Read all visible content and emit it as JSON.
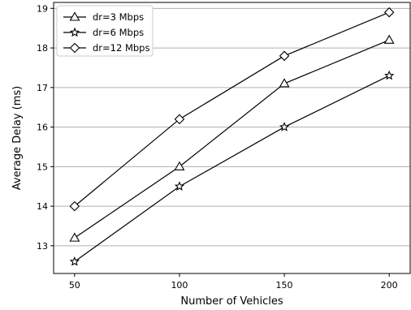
{
  "chart_data": {
    "type": "line",
    "title": "",
    "xlabel": "Number of Vehicles",
    "ylabel": "Average Delay (ms)",
    "x": [
      50,
      100,
      150,
      200
    ],
    "x_ticks": [
      "50",
      "100",
      "150",
      "200"
    ],
    "ylim": [
      12.3,
      19.15
    ],
    "y_ticks": [
      "13",
      "14",
      "15",
      "16",
      "17",
      "18",
      "19"
    ],
    "grid": "horizontal",
    "legend_position": "top-left",
    "series": [
      {
        "name": "dr=3 Mbps",
        "marker": "triangle",
        "color": "#000000",
        "values": [
          13.2,
          15.0,
          17.1,
          18.2
        ]
      },
      {
        "name": "dr=6 Mbps",
        "marker": "star",
        "color": "#000000",
        "values": [
          12.6,
          14.5,
          16.0,
          17.3
        ]
      },
      {
        "name": "dr=12 Mbps",
        "marker": "diamond",
        "color": "#000000",
        "values": [
          14.0,
          16.2,
          17.8,
          18.9
        ]
      }
    ]
  }
}
